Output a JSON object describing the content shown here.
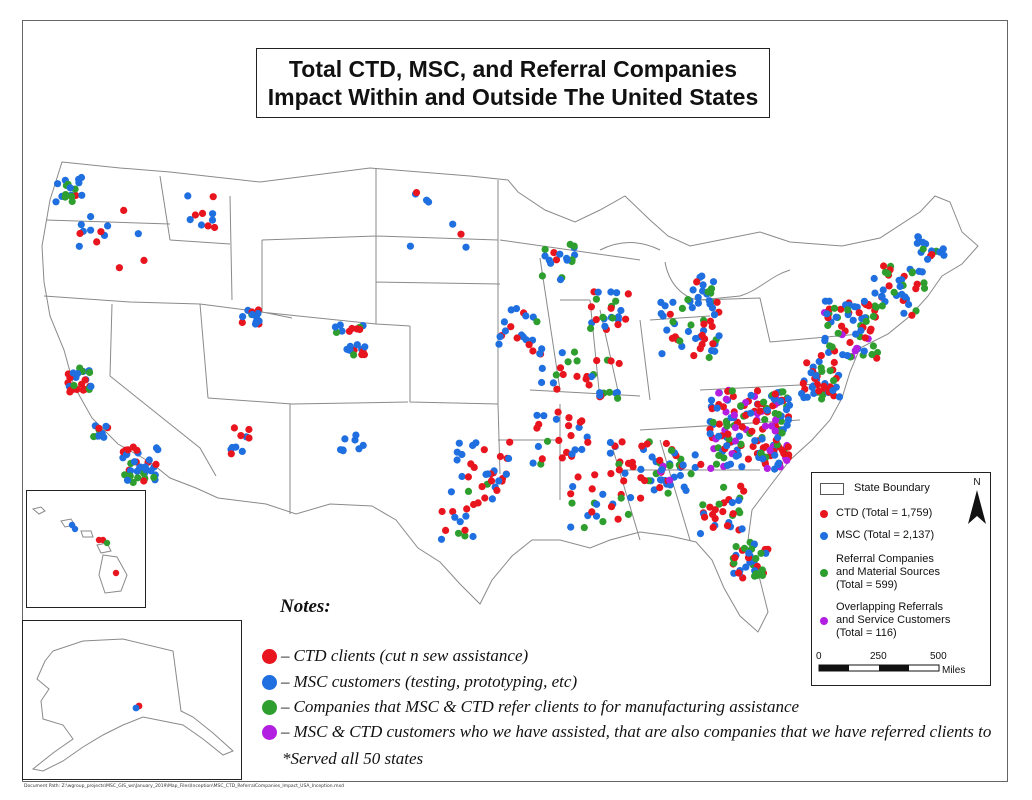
{
  "title": {
    "line1": "Total CTD, MSC, and Referral Companies",
    "line2": "Impact Within and Outside The United States"
  },
  "legend": {
    "state_boundary": "State Boundary",
    "ctd": "CTD (Total = 1,759)",
    "msc": "MSC (Total = 2,137)",
    "referral_line1": "Referral Companies",
    "referral_line2": "and Material Sources",
    "referral_line3": "(Total = 599)",
    "overlap_line1": "Overlapping Referrals",
    "overlap_line2": "and Service Customers",
    "overlap_line3": "(Total = 116)",
    "north": "N",
    "scale_0": "0",
    "scale_250": "250",
    "scale_500": "500",
    "scale_unit": "Miles"
  },
  "notes": {
    "title": "Notes:",
    "separator": "–",
    "ctd": "CTD clients (cut n sew assistance)",
    "msc": "MSC customers (testing, prototyping, etc)",
    "referral": "Companies that MSC & CTD refer clients to for manufacturing assistance",
    "overlap": "MSC & CTD customers who we have assisted, that are also companies that we have referred clients to",
    "served": "*Served all 50 states"
  },
  "document_path": "Document Path: Z:\\wgroup_projects\\MSC_GIS_ws\\January_2019\\Map_Files\\Inception\\MSC_CTD_ReferralCompanies_Impact_USA_Inception.mxd",
  "colors": {
    "ctd": "#e8141e",
    "msc": "#1f6fe0",
    "referral": "#2e9e2e",
    "overlap": "#b31fe0",
    "boundary": "#8a8a8a"
  }
}
